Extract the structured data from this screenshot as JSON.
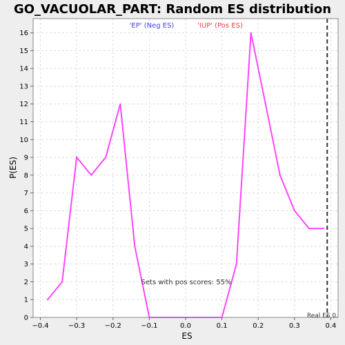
{
  "chart_data": {
    "type": "line",
    "title": "GO_VACUOLAR_PART: Random ES distribution",
    "xlabel": "ES",
    "ylabel": "P(ES)",
    "xlim": [
      -0.42,
      0.42
    ],
    "ylim": [
      0,
      16.8
    ],
    "grid": true,
    "x_ticks": [
      -0.4,
      -0.3,
      -0.2,
      -0.1,
      0.0,
      0.1,
      0.2,
      0.3,
      0.4
    ],
    "x_tick_labels": [
      "−0.4",
      "−0.3",
      "−0.2",
      "−0.1",
      "0.0",
      "0.1",
      "0.2",
      "0.3",
      "0.4"
    ],
    "y_ticks": [
      0,
      1,
      2,
      3,
      4,
      5,
      6,
      7,
      8,
      9,
      10,
      11,
      12,
      13,
      14,
      15,
      16
    ],
    "y_tick_labels": [
      "0",
      "1",
      "2",
      "3",
      "4",
      "5",
      "6",
      "7",
      "8",
      "9",
      "10",
      "11",
      "12",
      "13",
      "14",
      "15",
      "16"
    ],
    "legend": [
      {
        "label": "'EP' (Neg ES)",
        "color": "#4040ee"
      },
      {
        "label": "'IUP' (Pos ES)",
        "color": "#ee4040"
      }
    ],
    "series": [
      {
        "color": "#ff44ff",
        "x": [
          -0.38,
          -0.34,
          -0.3,
          -0.26,
          -0.22,
          -0.18,
          -0.14,
          -0.1,
          -0.06,
          -0.02,
          0.02,
          0.06,
          0.1,
          0.14,
          0.18,
          0.22,
          0.26,
          0.3,
          0.34,
          0.38
        ],
        "y": [
          1,
          2,
          9,
          8,
          9,
          12,
          4,
          0,
          0,
          0,
          0,
          0,
          0,
          3,
          16,
          12,
          8,
          6,
          5,
          5
        ]
      }
    ],
    "annotation": "Sets with pos scores: 55%",
    "real_es": {
      "label": "Real ES 0.",
      "x": 0.39
    }
  },
  "colors": {
    "line": "#ff44ff",
    "background": "#ffffff",
    "outer_background": "#eeeeee",
    "grid": "#dddddd"
  }
}
